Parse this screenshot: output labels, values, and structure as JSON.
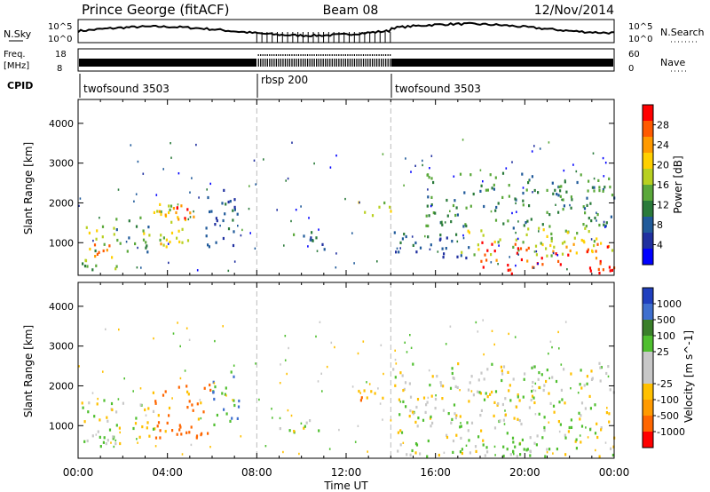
{
  "header": {
    "title": "Prince George (fitACF)",
    "beam": "Beam 08",
    "date": "12/Nov/2014"
  },
  "noise_panel": {
    "left_label": "N.Sky",
    "right_label": "N.Search",
    "left_ticks": [
      "10^5",
      "10^0"
    ],
    "right_ticks": [
      "10^5",
      "10^0"
    ]
  },
  "freq_panel": {
    "left_label": "Freq.",
    "left_unit": "[MHz]",
    "left_ticks": [
      "18",
      "8"
    ],
    "right_label": "Nave",
    "right_ticks": [
      "60",
      "0"
    ]
  },
  "cpid": {
    "label": "CPID",
    "segments": [
      {
        "name": "twofsound 3503",
        "start_h": 0,
        "end_h": 8
      },
      {
        "name": "rbsp 200",
        "start_h": 8,
        "end_h": 14
      },
      {
        "name": "twofsound 3503",
        "start_h": 14,
        "end_h": 24
      }
    ]
  },
  "x_axis": {
    "label": "Time UT",
    "ticks": [
      "00:00",
      "04:00",
      "08:00",
      "12:00",
      "16:00",
      "20:00",
      "00:00"
    ]
  },
  "colors": {
    "velocity_colorbar": [
      "#1f3fbf",
      "#3f6fcf",
      "#3a7f2a",
      "#4fbf2f",
      "#c8c8c8",
      "#c8c8c8",
      "#ffc000",
      "#ff9a00",
      "#ff6600",
      "#ff0000"
    ],
    "power_colorbar": [
      "#0000ff",
      "#2030a0",
      "#205a9a",
      "#2a7a3a",
      "#5aa83a",
      "#b8d020",
      "#ffd000",
      "#ff9a00",
      "#ff5a00",
      "#ff0000"
    ]
  },
  "chart_data": [
    {
      "type": "heatmap",
      "name": "power",
      "ylabel": "Slant Range [km]",
      "xlabel": "",
      "x_range_hours": [
        0,
        24
      ],
      "ylim": [
        180,
        4600
      ],
      "y_ticks": [
        1000,
        2000,
        3000,
        4000
      ],
      "colorbar": {
        "label": "Power [dB]",
        "ticks": [
          4,
          8,
          12,
          16,
          20,
          24,
          28
        ],
        "range": [
          0,
          32
        ]
      },
      "regions": [
        {
          "t0": 0.1,
          "t1": 1.7,
          "r0": 350,
          "r1": 1500,
          "value": 16
        },
        {
          "t0": 0.3,
          "t1": 1.5,
          "r0": 450,
          "r1": 1050,
          "value": 24
        },
        {
          "t0": 1.5,
          "t1": 3.2,
          "r0": 800,
          "r1": 1700,
          "value": 12
        },
        {
          "t0": 2.8,
          "t1": 4.2,
          "r0": 1000,
          "r1": 2000,
          "value": 18
        },
        {
          "t0": 3.6,
          "t1": 5.2,
          "r0": 900,
          "r1": 2000,
          "value": 22
        },
        {
          "t0": 4.2,
          "t1": 5.0,
          "r0": 1300,
          "r1": 2000,
          "value": 27
        },
        {
          "t0": 5.5,
          "t1": 7.2,
          "r0": 900,
          "r1": 2400,
          "value": 8
        },
        {
          "t0": 9.0,
          "t1": 11.0,
          "r0": 850,
          "r1": 1300,
          "value": 10
        },
        {
          "t0": 12.5,
          "t1": 14.0,
          "r0": 1700,
          "r1": 2100,
          "value": 18
        },
        {
          "t0": 14.0,
          "t1": 17.5,
          "r0": 600,
          "r1": 1300,
          "value": 8
        },
        {
          "t0": 15.5,
          "t1": 24.0,
          "r0": 1400,
          "r1": 2800,
          "value": 12
        },
        {
          "t0": 17.0,
          "t1": 24.0,
          "r0": 700,
          "r1": 1400,
          "value": 18
        },
        {
          "t0": 18.0,
          "t1": 24.0,
          "r0": 250,
          "r1": 1050,
          "value": 28
        }
      ]
    },
    {
      "type": "heatmap",
      "name": "velocity",
      "ylabel": "Slant Range [km]",
      "xlabel": "Time UT",
      "x_range_hours": [
        0,
        24
      ],
      "ylim": [
        180,
        4600
      ],
      "y_ticks": [
        1000,
        2000,
        3000,
        4000
      ],
      "colorbar": {
        "label": "Velocity [m s^-1]",
        "ticks": [
          1000,
          500,
          100,
          25,
          -25,
          -100,
          -500,
          -1000
        ]
      },
      "regions": [
        {
          "t0": 0.1,
          "t1": 2.0,
          "r0": 350,
          "r1": 1700,
          "value": 0
        },
        {
          "t0": 0.8,
          "t1": 1.8,
          "r0": 350,
          "r1": 800,
          "value": 150
        },
        {
          "t0": 2.0,
          "t1": 3.5,
          "r0": 700,
          "r1": 1600,
          "value": -50
        },
        {
          "t0": 3.2,
          "t1": 6.0,
          "r0": 700,
          "r1": 2100,
          "value": -400
        },
        {
          "t0": 5.8,
          "t1": 7.2,
          "r0": 1000,
          "r1": 2400,
          "value": 300
        },
        {
          "t0": 9.0,
          "t1": 11.0,
          "r0": 850,
          "r1": 1250,
          "value": 0
        },
        {
          "t0": 12.5,
          "t1": 14.0,
          "r0": 1650,
          "r1": 2100,
          "value": -300
        },
        {
          "t0": 14.0,
          "t1": 24.0,
          "r0": 250,
          "r1": 2600,
          "value": 0
        },
        {
          "t0": 18.0,
          "t1": 21.5,
          "r0": 350,
          "r1": 700,
          "value": 150
        }
      ]
    }
  ]
}
